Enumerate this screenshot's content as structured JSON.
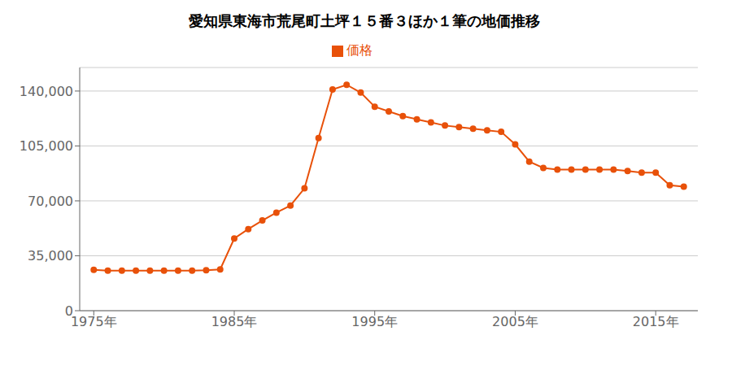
{
  "chart_data": {
    "type": "line",
    "title": "愛知県東海市荒尾町土坪１５番３ほか１筆の地価推移",
    "x": [
      1975,
      1976,
      1977,
      1978,
      1979,
      1980,
      1981,
      1982,
      1983,
      1984,
      1985,
      1986,
      1987,
      1988,
      1989,
      1990,
      1991,
      1992,
      1993,
      1994,
      1995,
      1996,
      1997,
      1998,
      1999,
      2000,
      2001,
      2002,
      2003,
      2004,
      2005,
      2006,
      2007,
      2008,
      2009,
      2010,
      2011,
      2012,
      2013,
      2014,
      2015,
      2016,
      2017
    ],
    "series": [
      {
        "name": "価格",
        "color": "#E8510A",
        "marker": "circle",
        "values": [
          26000,
          25500,
          25500,
          25500,
          25500,
          25500,
          25500,
          25500,
          25800,
          26300,
          46000,
          52000,
          57500,
          62500,
          67000,
          78000,
          110000,
          141000,
          144000,
          139000,
          130000,
          127000,
          124000,
          122000,
          120000,
          118000,
          117000,
          116000,
          115000,
          114000,
          106000,
          95000,
          91000,
          90000,
          90000,
          90000,
          90000,
          90000,
          89000,
          88000,
          88000,
          80000,
          79000
        ]
      }
    ],
    "xlim": [
      1974,
      2018
    ],
    "xticks": [
      {
        "value": 1975,
        "label": "1975年"
      },
      {
        "value": 1985,
        "label": "1985年"
      },
      {
        "value": 1995,
        "label": "1995年"
      },
      {
        "value": 2005,
        "label": "2005年"
      },
      {
        "value": 2015,
        "label": "2015年"
      }
    ],
    "ylim": [
      0,
      155000
    ],
    "yticks": [
      0,
      {
        "value": 35000,
        "label": "35,000"
      },
      {
        "value": 70000,
        "label": "70,000"
      },
      {
        "value": 105000,
        "label": "105,000"
      },
      {
        "value": 140000,
        "label": "140,000"
      }
    ],
    "grid": "y",
    "legend": "top"
  }
}
